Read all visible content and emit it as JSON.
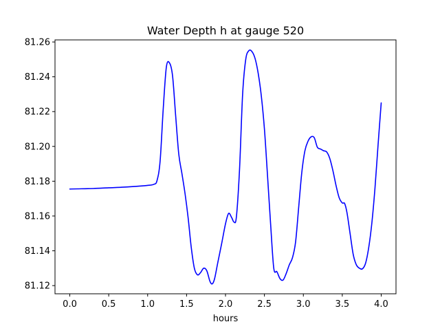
{
  "chart_data": {
    "type": "line",
    "title": "Water Depth h at gauge 520",
    "xlabel": "hours",
    "ylabel": "",
    "xlim": [
      -0.19,
      4.19
    ],
    "ylim": [
      81.1153,
      81.2612
    ],
    "xticks": [
      0.0,
      0.5,
      1.0,
      1.5,
      2.0,
      2.5,
      3.0,
      3.5,
      4.0
    ],
    "xtick_labels": [
      "0.0",
      "0.5",
      "1.0",
      "1.5",
      "2.0",
      "2.5",
      "3.0",
      "3.5",
      "4.0"
    ],
    "yticks": [
      81.12,
      81.14,
      81.16,
      81.18,
      81.2,
      81.22,
      81.24,
      81.26
    ],
    "ytick_labels": [
      "81.12",
      "81.14",
      "81.16",
      "81.18",
      "81.20",
      "81.22",
      "81.24",
      "81.26"
    ],
    "grid": false,
    "legend": "none",
    "series": [
      {
        "color": "#0000ff",
        "x": [
          0.0,
          0.1,
          0.3,
          0.5,
          0.7,
          0.9,
          1.0,
          1.08,
          1.12,
          1.16,
          1.2,
          1.24,
          1.28,
          1.32,
          1.36,
          1.4,
          1.44,
          1.48,
          1.52,
          1.56,
          1.6,
          1.64,
          1.68,
          1.72,
          1.76,
          1.8,
          1.83,
          1.86,
          1.9,
          1.95,
          2.0,
          2.04,
          2.08,
          2.11,
          2.14,
          2.18,
          2.22,
          2.26,
          2.3,
          2.34,
          2.38,
          2.42,
          2.46,
          2.5,
          2.54,
          2.58,
          2.62,
          2.66,
          2.7,
          2.74,
          2.78,
          2.82,
          2.86,
          2.9,
          2.94,
          2.98,
          3.02,
          3.06,
          3.1,
          3.14,
          3.18,
          3.22,
          3.26,
          3.3,
          3.34,
          3.38,
          3.42,
          3.46,
          3.5,
          3.53,
          3.56,
          3.6,
          3.64,
          3.68,
          3.72,
          3.76,
          3.8,
          3.84,
          3.88,
          3.92,
          3.96,
          4.0
        ],
        "y": [
          81.1755,
          81.1756,
          81.1758,
          81.1762,
          81.1766,
          81.1772,
          81.1776,
          81.1782,
          81.1803,
          81.1915,
          81.2215,
          81.2455,
          81.248,
          81.2405,
          81.2175,
          81.1955,
          81.1845,
          81.173,
          81.159,
          81.142,
          81.13,
          81.1262,
          81.1275,
          81.13,
          81.1285,
          81.1225,
          81.121,
          81.124,
          81.133,
          81.144,
          81.1555,
          81.1615,
          81.159,
          81.1565,
          81.1595,
          81.1865,
          81.23,
          81.25,
          81.255,
          81.2545,
          81.2505,
          81.242,
          81.229,
          81.21,
          81.183,
          81.155,
          81.13,
          81.128,
          81.124,
          81.1232,
          81.127,
          81.132,
          81.136,
          81.145,
          81.165,
          81.185,
          81.1975,
          81.203,
          81.2055,
          81.205,
          81.1995,
          81.1985,
          81.1975,
          81.1968,
          81.193,
          81.186,
          81.1775,
          81.1705,
          81.1675,
          81.1672,
          81.162,
          81.15,
          81.138,
          81.132,
          81.13,
          81.1297,
          81.133,
          81.142,
          81.156,
          81.176,
          81.201,
          81.225
        ]
      }
    ]
  }
}
